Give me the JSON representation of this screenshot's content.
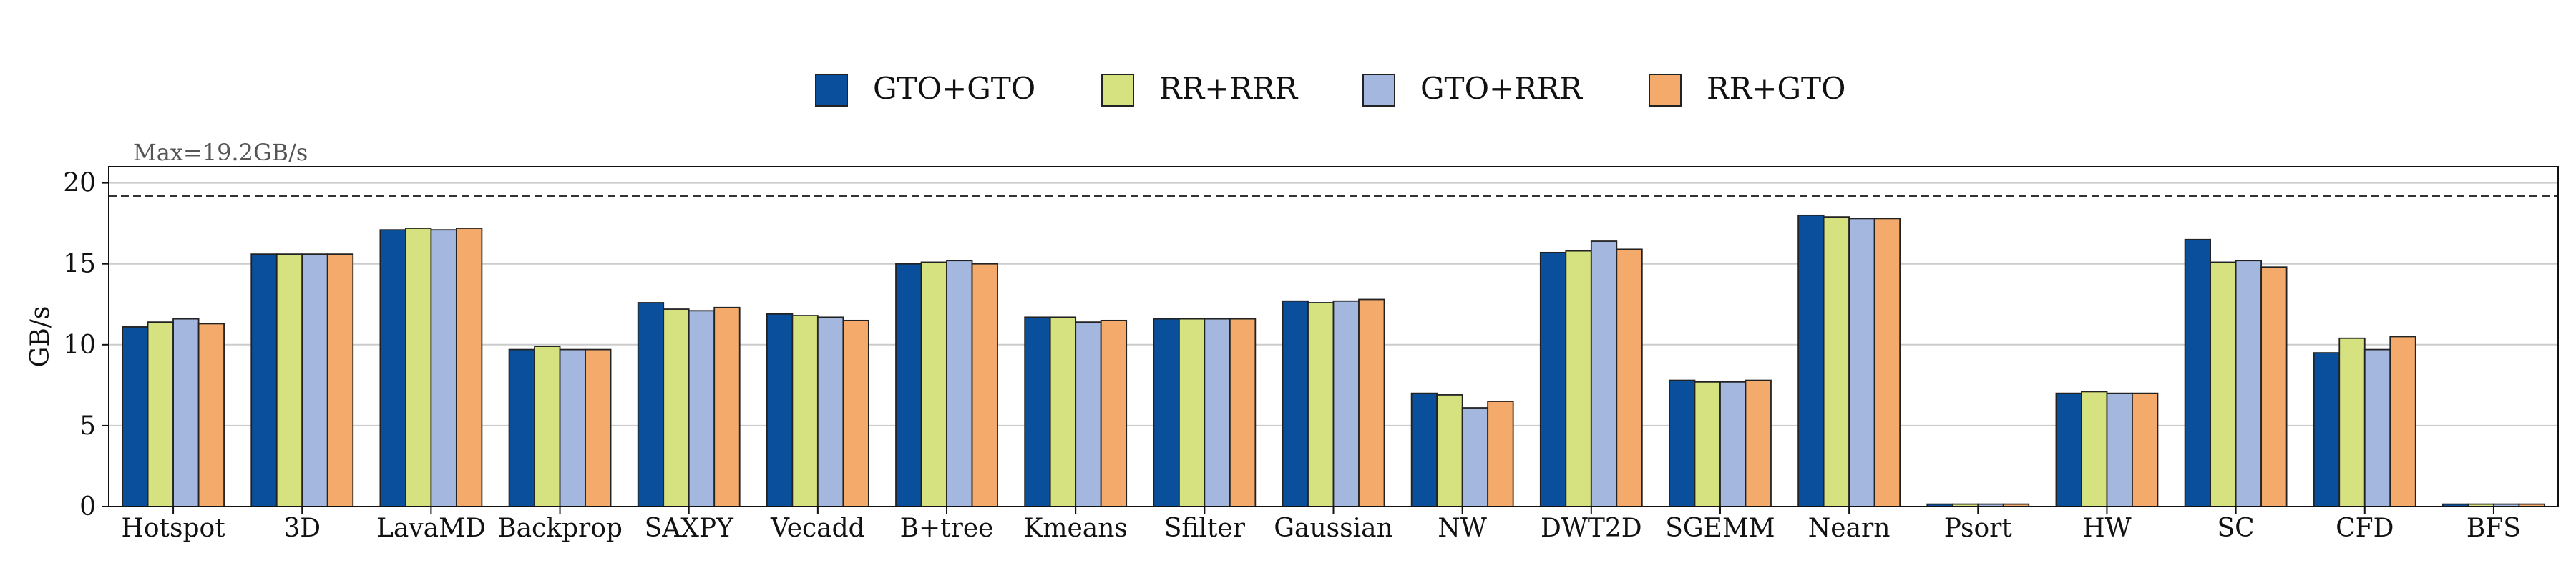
{
  "chart_data": {
    "type": "bar",
    "title": "",
    "xlabel": "",
    "ylabel": "GB/s",
    "ylim": [
      0,
      21
    ],
    "yticks": [
      0,
      5,
      10,
      15,
      20
    ],
    "grid": "horizontal",
    "legend_position": "top-center",
    "annotation": {
      "text": "Max=19.2GB/s",
      "value": 19.2,
      "line_style": "dashed"
    },
    "categories": [
      "Hotspot",
      "3D",
      "LavaMD",
      "Backprop",
      "SAXPY",
      "Vecadd",
      "B+tree",
      "Kmeans",
      "Sfilter",
      "Gaussian",
      "NW",
      "DWT2D",
      "SGEMM",
      "Nearn",
      "Psort",
      "HW",
      "SC",
      "CFD",
      "BFS"
    ],
    "series": [
      {
        "name": "GTO+GTO",
        "color": "#0a4f9c",
        "values": [
          11.1,
          15.6,
          17.1,
          9.7,
          12.6,
          11.9,
          15.0,
          11.7,
          11.6,
          12.7,
          7.0,
          15.7,
          7.8,
          18.0,
          0.15,
          7.0,
          16.5,
          9.5,
          0.15
        ]
      },
      {
        "name": "RR+RRR",
        "color": "#d6e17f",
        "values": [
          11.4,
          15.6,
          17.2,
          9.9,
          12.2,
          11.8,
          15.1,
          11.7,
          11.6,
          12.6,
          6.9,
          15.8,
          7.7,
          17.9,
          0.15,
          7.1,
          15.1,
          10.4,
          0.15
        ]
      },
      {
        "name": "GTO+RRR",
        "color": "#a3b7df",
        "values": [
          11.6,
          15.6,
          17.1,
          9.7,
          12.1,
          11.7,
          15.2,
          11.4,
          11.6,
          12.7,
          6.1,
          16.4,
          7.7,
          17.8,
          0.15,
          7.0,
          15.2,
          9.7,
          0.15
        ]
      },
      {
        "name": "RR+GTO",
        "color": "#f3aa6a",
        "values": [
          11.3,
          15.6,
          17.2,
          9.7,
          12.3,
          11.5,
          15.0,
          11.5,
          11.6,
          12.8,
          6.5,
          15.9,
          7.8,
          17.8,
          0.15,
          7.0,
          14.8,
          10.5,
          0.15
        ]
      }
    ]
  }
}
